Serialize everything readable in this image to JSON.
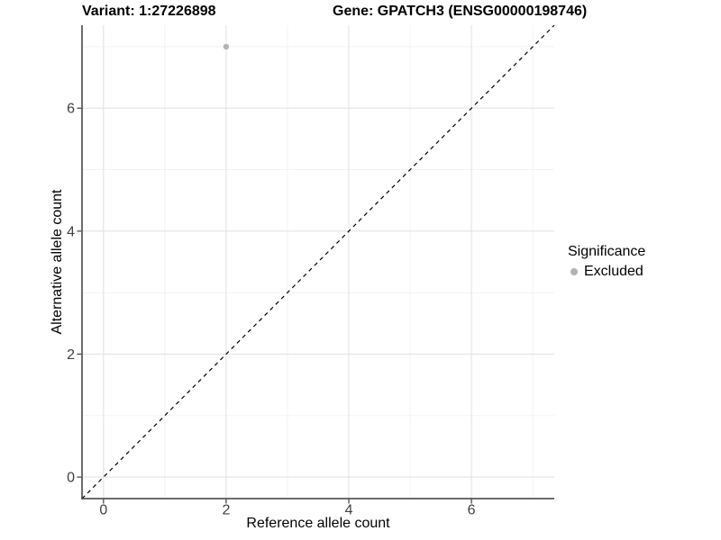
{
  "chart_data": {
    "type": "scatter",
    "titles": {
      "left": "Variant: 1:27226898",
      "right": "Gene: GPATCH3 (ENSG00000198746)"
    },
    "xlabel": "Reference allele count",
    "ylabel": "Alternative allele count",
    "xlim": [
      -0.35,
      7.35
    ],
    "ylim": [
      -0.35,
      7.35
    ],
    "x_ticks": {
      "major": [
        0,
        2,
        4,
        6
      ],
      "minor": [
        1,
        3,
        5,
        7
      ]
    },
    "y_ticks": {
      "major": [
        0,
        2,
        4,
        6
      ],
      "minor": [
        1,
        3,
        5,
        7
      ]
    },
    "grid": "major and minor gridlines, white panel background",
    "identity_line": {
      "type": "y=x",
      "style": "dashed",
      "color": "#000000"
    },
    "series": [
      {
        "name": "Excluded",
        "color": "#b3b3b3",
        "points": [
          {
            "x": 2,
            "y": 7
          }
        ]
      }
    ],
    "legend": {
      "title": "Significance",
      "position": "right",
      "entries": [
        {
          "label": "Excluded",
          "color": "#b3b3b3"
        }
      ]
    },
    "colors": {
      "background": "#ffffff",
      "grid_major": "#e3e3e3",
      "grid_minor": "#f1f1f1",
      "axis_line": "#3c3c3c",
      "tick_mark": "#3c3c3c",
      "tick_label": "#404040",
      "text": "#000000",
      "point": "#b3b3b3"
    }
  }
}
